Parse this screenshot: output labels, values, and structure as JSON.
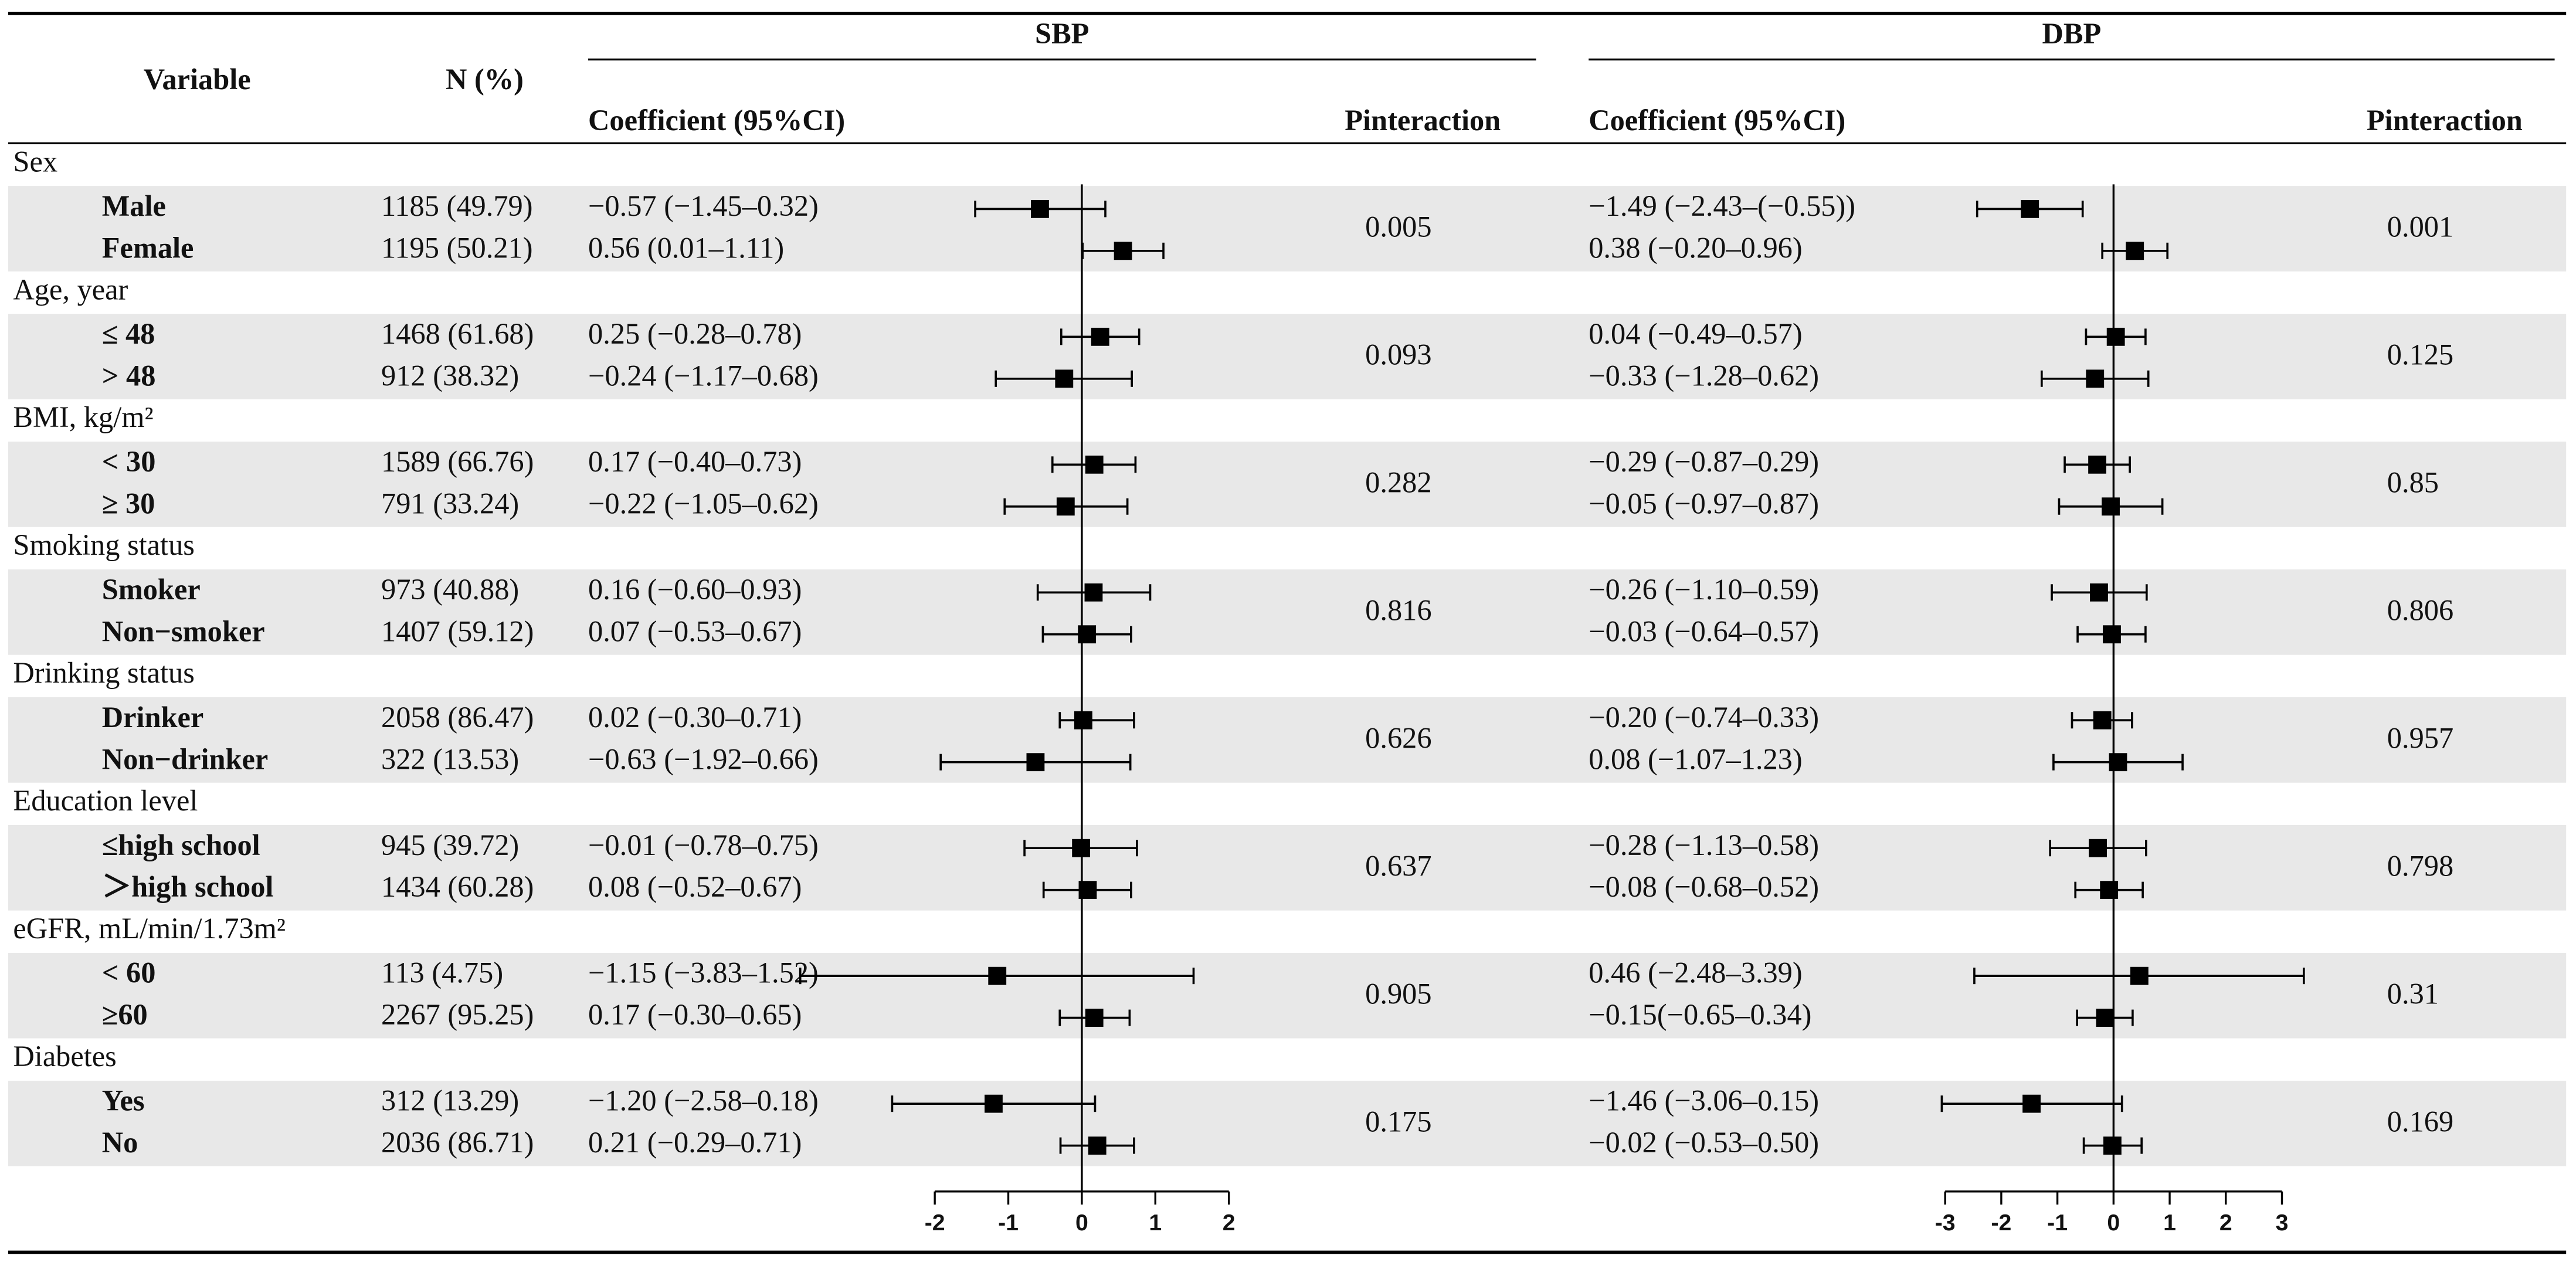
{
  "chart_data": {
    "type": "forest",
    "variable_header": "Variable",
    "n_header": "N (%)",
    "groups": [
      {
        "label": "Sex",
        "rows": [
          {
            "label": "Male",
            "n": "1185 (49.79)"
          },
          {
            "label": "Female",
            "n": "1195 (50.21)"
          }
        ]
      },
      {
        "label": "Age, year",
        "rows": [
          {
            "label": "≤ 48",
            "n": "1468 (61.68)"
          },
          {
            "label": "> 48",
            "n": "912 (38.32)"
          }
        ]
      },
      {
        "label": "BMI, kg/m²",
        "rows": [
          {
            "label": "< 30",
            "n": "1589 (66.76)"
          },
          {
            "label": "≥ 30",
            "n": "791 (33.24)"
          }
        ]
      },
      {
        "label": "Smoking status",
        "rows": [
          {
            "label": "Smoker",
            "n": "973 (40.88)"
          },
          {
            "label": "Non−smoker",
            "n": "1407 (59.12)"
          }
        ]
      },
      {
        "label": "Drinking status",
        "rows": [
          {
            "label": "Drinker",
            "n": "2058 (86.47)"
          },
          {
            "label": "Non−drinker",
            "n": "322 (13.53)"
          }
        ]
      },
      {
        "label": "Education level",
        "rows": [
          {
            "label": "≤high school",
            "n": "945 (39.72)"
          },
          {
            "label": "＞high school",
            "n": "1434 (60.28)"
          }
        ]
      },
      {
        "label": "eGFR, mL/min/1.73m²",
        "rows": [
          {
            "label": "< 60",
            "n": "113 (4.75)"
          },
          {
            "label": "≥60",
            "n": "2267 (95.25)"
          }
        ]
      },
      {
        "label": "Diabetes",
        "rows": [
          {
            "label": "Yes",
            "n": "312 (13.29)"
          },
          {
            "label": "No",
            "n": "2036 (86.71)"
          }
        ]
      }
    ],
    "panels": [
      {
        "name": "SBP",
        "coef_header": "Coefficient (95%CI)",
        "p_header": "Pinteraction",
        "xlim": [
          -2,
          2
        ],
        "xticks": [
          -2,
          -1,
          0,
          1,
          2
        ],
        "groups": [
          {
            "p": "0.005",
            "rows": [
              {
                "coef": "−0.57 (−1.45–0.32)",
                "values": [
                  -0.57,
                  -1.45,
                  0.32
                ]
              },
              {
                "coef": "0.56 (0.01–1.11)",
                "values": [
                  0.56,
                  0.01,
                  1.11
                ]
              }
            ]
          },
          {
            "p": "0.093",
            "rows": [
              {
                "coef": "0.25 (−0.28–0.78)",
                "values": [
                  0.25,
                  -0.28,
                  0.78
                ]
              },
              {
                "coef": "−0.24 (−1.17–0.68)",
                "values": [
                  -0.24,
                  -1.17,
                  0.68
                ]
              }
            ]
          },
          {
            "p": "0.282",
            "rows": [
              {
                "coef": "0.17 (−0.40–0.73)",
                "values": [
                  0.17,
                  -0.4,
                  0.73
                ]
              },
              {
                "coef": "−0.22 (−1.05–0.62)",
                "values": [
                  -0.22,
                  -1.05,
                  0.62
                ]
              }
            ]
          },
          {
            "p": "0.816",
            "rows": [
              {
                "coef": "0.16 (−0.60–0.93)",
                "values": [
                  0.16,
                  -0.6,
                  0.93
                ]
              },
              {
                "coef": "0.07 (−0.53–0.67)",
                "values": [
                  0.07,
                  -0.53,
                  0.67
                ]
              }
            ]
          },
          {
            "p": "0.626",
            "rows": [
              {
                "coef": "0.02 (−0.30–0.71)",
                "values": [
                  0.02,
                  -0.3,
                  0.71
                ]
              },
              {
                "coef": "−0.63 (−1.92–0.66)",
                "values": [
                  -0.63,
                  -1.92,
                  0.66
                ]
              }
            ]
          },
          {
            "p": "0.637",
            "rows": [
              {
                "coef": "−0.01 (−0.78–0.75)",
                "values": [
                  -0.01,
                  -0.78,
                  0.75
                ]
              },
              {
                "coef": "0.08 (−0.52–0.67)",
                "values": [
                  0.08,
                  -0.52,
                  0.67
                ]
              }
            ]
          },
          {
            "p": "0.905",
            "rows": [
              {
                "coef": "−1.15 (−3.83–1.52)",
                "values": [
                  -1.15,
                  -3.83,
                  1.52
                ]
              },
              {
                "coef": "0.17 (−0.30–0.65)",
                "values": [
                  0.17,
                  -0.3,
                  0.65
                ]
              }
            ]
          },
          {
            "p": "0.175",
            "rows": [
              {
                "coef": "−1.20 (−2.58–0.18)",
                "values": [
                  -1.2,
                  -2.58,
                  0.18
                ]
              },
              {
                "coef": "0.21 (−0.29–0.71)",
                "values": [
                  0.21,
                  -0.29,
                  0.71
                ]
              }
            ]
          }
        ]
      },
      {
        "name": "DBP",
        "coef_header": "Coefficient (95%CI)",
        "p_header": "Pinteraction",
        "xlim": [
          -3,
          3
        ],
        "xticks": [
          -3,
          -2,
          -1,
          0,
          1,
          2,
          3
        ],
        "groups": [
          {
            "p": "0.001",
            "rows": [
              {
                "coef": "−1.49 (−2.43–(−0.55))",
                "values": [
                  -1.49,
                  -2.43,
                  -0.55
                ]
              },
              {
                "coef": "0.38 (−0.20–0.96)",
                "values": [
                  0.38,
                  -0.2,
                  0.96
                ]
              }
            ]
          },
          {
            "p": "0.125",
            "rows": [
              {
                "coef": "0.04 (−0.49–0.57)",
                "values": [
                  0.04,
                  -0.49,
                  0.57
                ]
              },
              {
                "coef": "−0.33 (−1.28–0.62)",
                "values": [
                  -0.33,
                  -1.28,
                  0.62
                ]
              }
            ]
          },
          {
            "p": "0.85",
            "rows": [
              {
                "coef": "−0.29 (−0.87–0.29)",
                "values": [
                  -0.29,
                  -0.87,
                  0.29
                ]
              },
              {
                "coef": "−0.05 (−0.97–0.87)",
                "values": [
                  -0.05,
                  -0.97,
                  0.87
                ]
              }
            ]
          },
          {
            "p": "0.806",
            "rows": [
              {
                "coef": "−0.26 (−1.10–0.59)",
                "values": [
                  -0.26,
                  -1.1,
                  0.59
                ]
              },
              {
                "coef": "−0.03 (−0.64–0.57)",
                "values": [
                  -0.03,
                  -0.64,
                  0.57
                ]
              }
            ]
          },
          {
            "p": "0.957",
            "rows": [
              {
                "coef": "−0.20 (−0.74–0.33)",
                "values": [
                  -0.2,
                  -0.74,
                  0.33
                ]
              },
              {
                "coef": "0.08 (−1.07–1.23)",
                "values": [
                  0.08,
                  -1.07,
                  1.23
                ]
              }
            ]
          },
          {
            "p": "0.798",
            "rows": [
              {
                "coef": "−0.28 (−1.13–0.58)",
                "values": [
                  -0.28,
                  -1.13,
                  0.58
                ]
              },
              {
                "coef": "−0.08 (−0.68–0.52)",
                "values": [
                  -0.08,
                  -0.68,
                  0.52
                ]
              }
            ]
          },
          {
            "p": "0.31",
            "rows": [
              {
                "coef": "0.46 (−2.48–3.39)",
                "values": [
                  0.46,
                  -2.48,
                  3.39
                ]
              },
              {
                "coef": "−0.15(−0.65–0.34)",
                "values": [
                  -0.15,
                  -0.65,
                  0.34
                ]
              }
            ]
          },
          {
            "p": "0.169",
            "rows": [
              {
                "coef": "−1.46 (−3.06–0.15)",
                "values": [
                  -1.46,
                  -3.06,
                  0.15
                ]
              },
              {
                "coef": "−0.02 (−0.53–0.50)",
                "values": [
                  -0.02,
                  -0.53,
                  0.5
                ]
              }
            ]
          }
        ]
      }
    ]
  }
}
